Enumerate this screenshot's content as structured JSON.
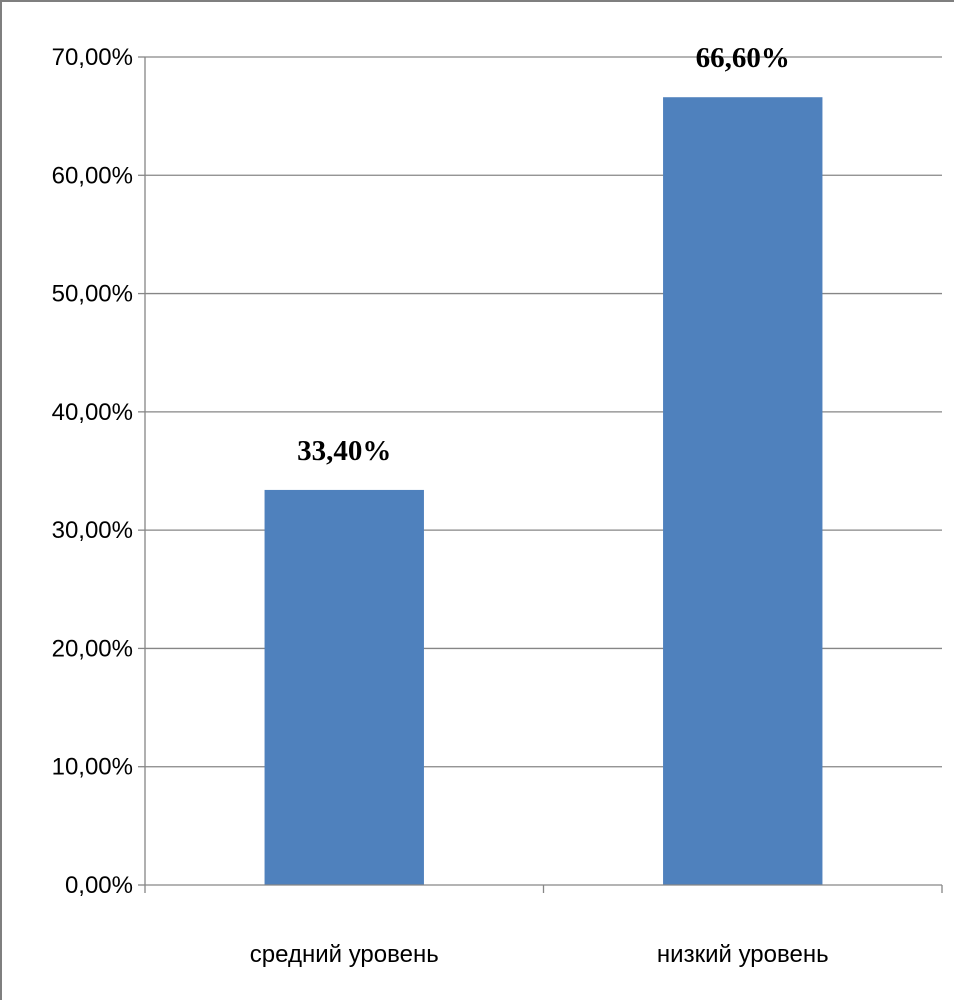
{
  "chart_data": {
    "type": "bar",
    "categories": [
      "средний уровень",
      "низкий уровень"
    ],
    "values": [
      33.4,
      66.6
    ],
    "data_labels": [
      "33,40%",
      "66,60%"
    ],
    "y_ticks": [
      0,
      10,
      20,
      30,
      40,
      50,
      60,
      70
    ],
    "y_tick_labels": [
      "0,00%",
      "10,00%",
      "20,00%",
      "30,00%",
      "40,00%",
      "50,00%",
      "60,00%",
      "70,00%"
    ],
    "ylim": [
      0,
      70
    ],
    "grid": true,
    "legend": "none",
    "title": "",
    "xlabel": "",
    "ylabel": "",
    "colors": {
      "bar": "#4f81bd",
      "grid": "#868686",
      "axis": "#868686",
      "frame": "#7f7f7f"
    }
  }
}
